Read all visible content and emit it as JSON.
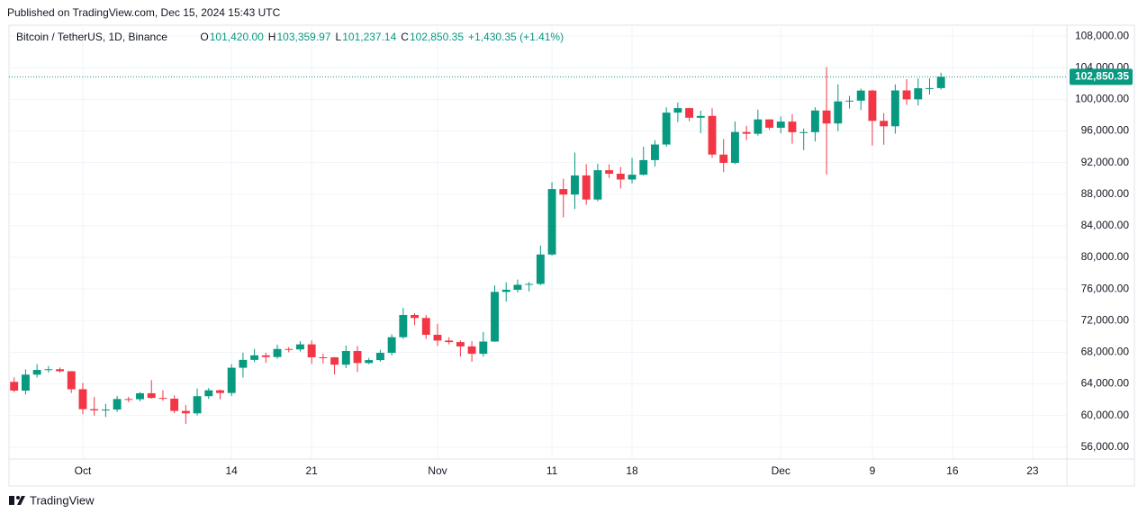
{
  "published": "Published on TradingView.com, Dec 15, 2024 15:43 UTC",
  "footer": "TradingView",
  "chart_data": {
    "type": "candlestick",
    "title": "Bitcoin / TetherUS, 1D, Binance",
    "ohlc_header": [
      {
        "label": "O",
        "value": "101,420.00"
      },
      {
        "label": "H",
        "value": "103,359.97"
      },
      {
        "label": "L",
        "value": "101,237.14"
      },
      {
        "label": "C",
        "value": "102,850.35"
      }
    ],
    "change": "+1,430.35 (+1.41%)",
    "last_price_label": "102,850.35",
    "up_color": "#089981",
    "down_color": "#f23645",
    "grid": true,
    "x": [
      "2024-09-25",
      "2024-09-26",
      "2024-09-27",
      "2024-09-28",
      "2024-09-29",
      "2024-09-30",
      "2024-10-01",
      "2024-10-02",
      "2024-10-03",
      "2024-10-04",
      "2024-10-05",
      "2024-10-06",
      "2024-10-07",
      "2024-10-08",
      "2024-10-09",
      "2024-10-10",
      "2024-10-11",
      "2024-10-12",
      "2024-10-13",
      "2024-10-14",
      "2024-10-15",
      "2024-10-16",
      "2024-10-17",
      "2024-10-18",
      "2024-10-19",
      "2024-10-20",
      "2024-10-21",
      "2024-10-22",
      "2024-10-23",
      "2024-10-24",
      "2024-10-25",
      "2024-10-26",
      "2024-10-27",
      "2024-10-28",
      "2024-10-29",
      "2024-10-30",
      "2024-10-31",
      "2024-11-01",
      "2024-11-02",
      "2024-11-03",
      "2024-11-04",
      "2024-11-05",
      "2024-11-06",
      "2024-11-07",
      "2024-11-08",
      "2024-11-09",
      "2024-11-10",
      "2024-11-11",
      "2024-11-12",
      "2024-11-13",
      "2024-11-14",
      "2024-11-15",
      "2024-11-16",
      "2024-11-17",
      "2024-11-18",
      "2024-11-19",
      "2024-11-20",
      "2024-11-21",
      "2024-11-22",
      "2024-11-23",
      "2024-11-24",
      "2024-11-25",
      "2024-11-26",
      "2024-11-27",
      "2024-11-28",
      "2024-11-29",
      "2024-11-30",
      "2024-12-01",
      "2024-12-02",
      "2024-12-03",
      "2024-12-04",
      "2024-12-05",
      "2024-12-06",
      "2024-12-07",
      "2024-12-08",
      "2024-12-09",
      "2024-12-10",
      "2024-12-11",
      "2024-12-12",
      "2024-12-13",
      "2024-12-14",
      "2024-12-15"
    ],
    "open": [
      64260,
      63152,
      65173,
      65769,
      65858,
      65602,
      63327,
      60805,
      60649,
      60752,
      62086,
      62058,
      62819,
      62224,
      62131,
      60582,
      60274,
      62445,
      63193,
      62851,
      66046,
      67041,
      67612,
      67399,
      68418,
      68362,
      69001,
      67367,
      67361,
      66432,
      68161,
      66642,
      67014,
      67930,
      69907,
      72720,
      72339,
      70215,
      69482,
      69290,
      68742,
      67811,
      69359,
      75640,
      75904,
      76538,
      76649,
      80370,
      88647,
      87952,
      90375,
      87325,
      91032,
      90586,
      89855,
      90464,
      92310,
      94286,
      98317,
      98892,
      97672,
      97900,
      93010,
      91965,
      95863,
      95643,
      97460,
      96407,
      97185,
      95840,
      95849,
      98587,
      96945,
      99740,
      99831,
      101109,
      97276,
      96593,
      101125,
      100000,
      101400,
      101420
    ],
    "high": [
      64817,
      65839,
      66498,
      66260,
      66076,
      65618,
      64130,
      62370,
      61478,
      62484,
      62370,
      62975,
      64478,
      63200,
      62543,
      61320,
      63417,
      63480,
      63285,
      66500,
      67950,
      68424,
      67939,
      68969,
      68668,
      69400,
      69500,
      67836,
      67400,
      68850,
      68800,
      67300,
      68300,
      70270,
      73620,
      72961,
      72700,
      71600,
      69900,
      69500,
      69400,
      70577,
      76460,
      76849,
      77199,
      76900,
      81500,
      89530,
      89956,
      93265,
      91790,
      91850,
      91779,
      91449,
      92594,
      94002,
      94831,
      98988,
      99588,
      98935,
      98564,
      98871,
      94973,
      97208,
      96650,
      98693,
      97463,
      97836,
      98130,
      96305,
      99000,
      104088,
      101898,
      100439,
      101350,
      101215,
      98270,
      101895,
      102540,
      102650,
      102650,
      103359.97
    ],
    "low": [
      62947,
      62670,
      64819,
      65422,
      65432,
      62856,
      60164,
      59982,
      59828,
      60459,
      61689,
      61798,
      62128,
      61860,
      60300,
      58946,
      60000,
      62100,
      62050,
      62450,
      64800,
      66750,
      66666,
      67177,
      68000,
      68100,
      66518,
      66571,
      65200,
      66000,
      65500,
      66500,
      66800,
      67600,
      69700,
      71436,
      69685,
      68779,
      69000,
      67455,
      66800,
      67453,
      69322,
      74416,
      75562,
      75700,
      76488,
      80216,
      85072,
      86127,
      86668,
      87073,
      90056,
      88722,
      89376,
      90357,
      91500,
      94000,
      97122,
      97232,
      95734,
      92600,
      90791,
      91792,
      94827,
      95407,
      96150,
      95693,
      94395,
      93578,
      94660,
      90500,
      95981,
      98844,
      98650,
      94150,
      94256,
      95650,
      99311,
      99205,
      100609,
      101237.14
    ],
    "close": [
      63152,
      65173,
      65769,
      65858,
      65602,
      63327,
      60805,
      60649,
      60752,
      62086,
      62058,
      62819,
      62224,
      62131,
      60582,
      60274,
      62445,
      63193,
      62851,
      66046,
      67041,
      67612,
      67399,
      68418,
      68362,
      69001,
      67367,
      67361,
      66432,
      68161,
      66642,
      67014,
      67930,
      69907,
      72720,
      72339,
      70215,
      69482,
      69290,
      68742,
      67811,
      69359,
      75640,
      75904,
      76538,
      76649,
      80370,
      88647,
      87952,
      90375,
      87325,
      91032,
      90586,
      89855,
      90464,
      92310,
      94286,
      98317,
      98892,
      97672,
      97900,
      93010,
      91965,
      95863,
      95643,
      97460,
      96407,
      97185,
      95840,
      95849,
      98587,
      96945,
      99740,
      99831,
      101109,
      97276,
      96593,
      101125,
      100000,
      101400,
      101420,
      102850.35
    ],
    "xlim": [
      "2024-09-24",
      "2024-12-26"
    ],
    "xticks": [
      {
        "value": "2024-10-01",
        "label": "Oct"
      },
      {
        "value": "2024-10-14",
        "label": "14"
      },
      {
        "value": "2024-10-21",
        "label": "21"
      },
      {
        "value": "2024-11-01",
        "label": "Nov"
      },
      {
        "value": "2024-11-11",
        "label": "11"
      },
      {
        "value": "2024-11-18",
        "label": "18"
      },
      {
        "value": "2024-12-01",
        "label": "Dec"
      },
      {
        "value": "2024-12-09",
        "label": "9"
      },
      {
        "value": "2024-12-16",
        "label": "16"
      },
      {
        "value": "2024-12-23",
        "label": "23"
      }
    ],
    "ylim": [
      54500,
      109150
    ],
    "yticks": [
      {
        "value": 56000,
        "label": "56,000.00"
      },
      {
        "value": 60000,
        "label": "60,000.00"
      },
      {
        "value": 64000,
        "label": "64,000.00"
      },
      {
        "value": 68000,
        "label": "68,000.00"
      },
      {
        "value": 72000,
        "label": "72,000.00"
      },
      {
        "value": 76000,
        "label": "76,000.00"
      },
      {
        "value": 80000,
        "label": "80,000.00"
      },
      {
        "value": 84000,
        "label": "84,000.00"
      },
      {
        "value": 88000,
        "label": "88,000.00"
      },
      {
        "value": 92000,
        "label": "92,000.00"
      },
      {
        "value": 96000,
        "label": "96,000.00"
      },
      {
        "value": 100000,
        "label": "100,000.00"
      },
      {
        "value": 104000,
        "label": "104,000.00"
      },
      {
        "value": 108000,
        "label": "108,000.00"
      }
    ]
  }
}
